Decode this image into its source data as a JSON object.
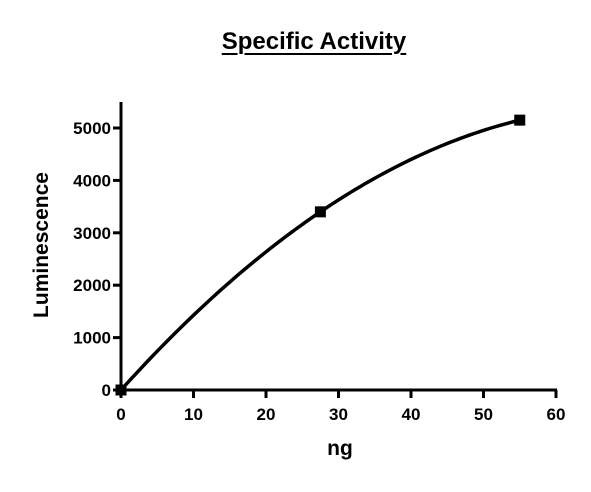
{
  "chart_data": {
    "type": "scatter",
    "title": "Specific Activity",
    "xlabel": "ng",
    "ylabel": "Luminescence",
    "xlim": [
      0,
      60
    ],
    "ylim": [
      0,
      5500
    ],
    "x_ticks": [
      0,
      10,
      20,
      30,
      40,
      50,
      60
    ],
    "y_ticks": [
      0,
      1000,
      2000,
      3000,
      4000,
      5000
    ],
    "grid": false,
    "series": [
      {
        "points": [
          {
            "x": 0,
            "y": 0
          },
          {
            "x": 27.5,
            "y": 3400
          },
          {
            "x": 55,
            "y": 5150
          }
        ],
        "marker": "square",
        "fit": "curve"
      }
    ],
    "colors": {
      "series": "#000000",
      "axes": "#000000",
      "background": "#ffffff"
    }
  }
}
